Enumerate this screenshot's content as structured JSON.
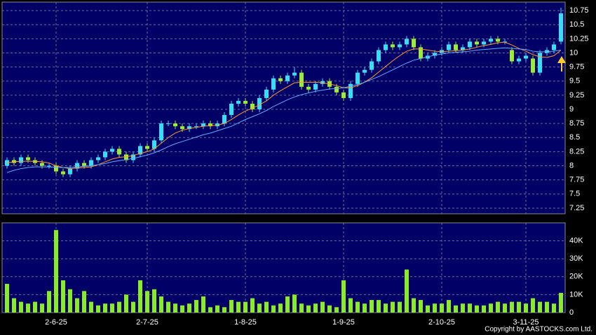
{
  "chart_data": [
    {
      "type": "candlestick",
      "up_color": "#33e0f5",
      "down_color": "#99ee33",
      "open": [
        8.0,
        8.1,
        8.05,
        8.15,
        8.1,
        8.05,
        8.0,
        8.0,
        7.9,
        7.85,
        7.95,
        8.05,
        8.0,
        8.1,
        8.15,
        8.25,
        8.3,
        8.2,
        8.1,
        8.2,
        8.35,
        8.3,
        8.45,
        8.75,
        8.75,
        8.7,
        8.65,
        8.7,
        8.7,
        8.75,
        8.7,
        8.75,
        8.9,
        9.1,
        9.15,
        9.1,
        9.0,
        9.2,
        9.35,
        9.55,
        9.5,
        9.6,
        9.65,
        9.4,
        9.35,
        9.45,
        9.5,
        9.4,
        9.3,
        9.2,
        9.45,
        9.65,
        9.7,
        9.85,
        10.05,
        10.15,
        10.1,
        10.15,
        10.25,
        10.1,
        9.9,
        9.95,
        10.0,
        10.05,
        10.15,
        10.05,
        10.1,
        10.2,
        10.15,
        10.2,
        10.25,
        10.2,
        10.05,
        9.85,
        9.9,
        9.9,
        9.65,
        10.0,
        10.05,
        10.2
      ],
      "high": [
        8.15,
        8.15,
        8.2,
        8.2,
        8.15,
        8.1,
        8.05,
        8.05,
        7.95,
        8.0,
        8.1,
        8.1,
        8.15,
        8.2,
        8.3,
        8.35,
        8.35,
        8.25,
        8.25,
        8.4,
        8.4,
        8.5,
        8.8,
        8.8,
        8.8,
        8.75,
        8.75,
        8.75,
        8.8,
        8.8,
        8.8,
        8.95,
        9.15,
        9.2,
        9.2,
        9.15,
        9.25,
        9.4,
        9.6,
        9.6,
        9.65,
        9.75,
        9.7,
        9.45,
        9.5,
        9.55,
        9.55,
        9.45,
        9.35,
        9.5,
        9.7,
        9.75,
        9.9,
        10.1,
        10.2,
        10.2,
        10.2,
        10.3,
        10.3,
        10.15,
        10.0,
        10.05,
        10.1,
        10.2,
        10.2,
        10.15,
        10.25,
        10.25,
        10.25,
        10.3,
        10.3,
        10.25,
        10.1,
        9.95,
        10.0,
        9.95,
        10.05,
        10.1,
        10.2,
        10.8
      ],
      "low": [
        7.95,
        8.0,
        8.0,
        8.05,
        8.0,
        7.95,
        7.95,
        7.85,
        7.8,
        7.8,
        7.9,
        7.95,
        7.95,
        8.05,
        8.1,
        8.2,
        8.15,
        8.05,
        8.05,
        8.15,
        8.25,
        8.25,
        8.4,
        8.7,
        8.65,
        8.6,
        8.6,
        8.65,
        8.65,
        8.65,
        8.65,
        8.7,
        8.85,
        9.05,
        9.05,
        8.95,
        8.95,
        9.15,
        9.3,
        9.45,
        9.45,
        9.55,
        9.35,
        9.3,
        9.3,
        9.4,
        9.35,
        9.25,
        9.15,
        9.15,
        9.4,
        9.6,
        9.65,
        9.8,
        10.0,
        10.05,
        10.05,
        10.1,
        10.05,
        9.85,
        9.85,
        9.9,
        9.95,
        10.0,
        10.0,
        10.0,
        10.05,
        10.1,
        10.1,
        10.15,
        10.15,
        10.15,
        9.8,
        9.8,
        9.85,
        9.6,
        9.6,
        9.95,
        10.0,
        10.15
      ],
      "close": [
        8.1,
        8.05,
        8.15,
        8.1,
        8.05,
        8.0,
        8.0,
        7.9,
        7.85,
        7.95,
        8.05,
        8.0,
        8.1,
        8.15,
        8.25,
        8.3,
        8.2,
        8.1,
        8.2,
        8.35,
        8.3,
        8.45,
        8.75,
        8.75,
        8.7,
        8.65,
        8.7,
        8.7,
        8.75,
        8.7,
        8.75,
        8.9,
        9.1,
        9.15,
        9.1,
        9.0,
        9.2,
        9.35,
        9.55,
        9.5,
        9.6,
        9.65,
        9.4,
        9.35,
        9.45,
        9.5,
        9.4,
        9.3,
        9.2,
        9.45,
        9.65,
        9.7,
        9.85,
        10.05,
        10.15,
        10.1,
        10.15,
        10.25,
        10.1,
        9.9,
        9.95,
        10.0,
        10.05,
        10.15,
        10.05,
        10.1,
        10.2,
        10.15,
        10.2,
        10.25,
        10.2,
        10.2,
        9.85,
        9.9,
        9.95,
        9.65,
        10.0,
        10.05,
        10.15,
        10.7
      ],
      "series": [
        {
          "color": "#ff9933",
          "values": [
            8.05,
            8.07,
            8.08,
            8.08,
            8.08,
            8.07,
            8.05,
            8.0,
            7.97,
            7.95,
            7.96,
            7.97,
            7.98,
            8.02,
            8.07,
            8.12,
            8.15,
            8.16,
            8.18,
            8.22,
            8.25,
            8.3,
            8.4,
            8.5,
            8.58,
            8.63,
            8.66,
            8.68,
            8.7,
            8.71,
            8.72,
            8.75,
            8.82,
            8.9,
            8.97,
            9.02,
            9.08,
            9.15,
            9.25,
            9.33,
            9.4,
            9.47,
            9.48,
            9.48,
            9.48,
            9.47,
            9.45,
            9.42,
            9.38,
            9.38,
            9.42,
            9.48,
            9.56,
            9.66,
            9.76,
            9.86,
            9.95,
            10.03,
            10.07,
            10.07,
            10.05,
            10.03,
            10.02,
            10.03,
            10.04,
            10.05,
            10.07,
            10.1,
            10.13,
            10.15,
            10.18,
            10.19,
            10.14,
            10.08,
            10.03,
            9.97,
            9.93,
            9.92,
            9.95,
            10.05
          ]
        },
        {
          "color": "#66aaff",
          "values": [
            7.88,
            7.92,
            7.95,
            7.97,
            7.98,
            7.98,
            7.98,
            7.97,
            7.97,
            7.97,
            7.98,
            7.99,
            8.0,
            8.02,
            8.04,
            8.07,
            8.09,
            8.11,
            8.13,
            8.16,
            8.19,
            8.23,
            8.28,
            8.34,
            8.39,
            8.43,
            8.47,
            8.51,
            8.55,
            8.58,
            8.62,
            8.66,
            8.7,
            8.76,
            8.82,
            8.87,
            8.92,
            8.98,
            9.05,
            9.11,
            9.17,
            9.22,
            9.26,
            9.29,
            9.32,
            9.34,
            9.36,
            9.37,
            9.38,
            9.41,
            9.44,
            9.48,
            9.53,
            9.58,
            9.64,
            9.7,
            9.76,
            9.82,
            9.87,
            9.9,
            9.93,
            9.96,
            9.98,
            10.0,
            10.01,
            10.02,
            10.03,
            10.05,
            10.06,
            10.07,
            10.08,
            10.09,
            10.08,
            10.07,
            10.06,
            10.03,
            10.02,
            10.02,
            10.03,
            10.05
          ]
        }
      ],
      "ylim": [
        7.15,
        10.9
      ],
      "yticks": [
        7.25,
        7.5,
        7.75,
        8,
        8.25,
        8.5,
        8.75,
        9,
        9.25,
        9.5,
        9.75,
        10,
        10.25,
        10.5,
        10.75
      ],
      "grid": true
    },
    {
      "type": "bar",
      "color": "#88ee22",
      "categories": [
        null,
        null,
        null,
        null,
        null,
        null,
        null,
        "2-6-25",
        null,
        null,
        null,
        null,
        null,
        null,
        null,
        null,
        null,
        null,
        null,
        null,
        "2-7-25",
        null,
        null,
        null,
        null,
        null,
        null,
        null,
        null,
        null,
        null,
        null,
        null,
        null,
        "1-8-25",
        null,
        null,
        null,
        null,
        null,
        null,
        null,
        null,
        null,
        null,
        null,
        null,
        null,
        "1-9-25",
        null,
        null,
        null,
        null,
        null,
        null,
        null,
        null,
        null,
        null,
        null,
        null,
        null,
        "2-10-25",
        null,
        null,
        null,
        null,
        null,
        null,
        null,
        null,
        null,
        null,
        null,
        "3-11-25",
        null,
        null,
        null,
        null,
        null
      ],
      "values": [
        16000,
        8000,
        6000,
        5000,
        6000,
        5000,
        12000,
        46000,
        18000,
        13000,
        8000,
        12000,
        6000,
        4000,
        5000,
        5000,
        6000,
        10000,
        6000,
        18000,
        12000,
        13000,
        9000,
        6000,
        5000,
        4000,
        5000,
        7000,
        9000,
        3000,
        4000,
        3000,
        7000,
        6000,
        6000,
        8000,
        5000,
        6000,
        4000,
        5000,
        9000,
        10000,
        5000,
        4000,
        5000,
        6000,
        4000,
        3000,
        18000,
        8000,
        6000,
        5000,
        7000,
        7000,
        5000,
        6000,
        6000,
        24000,
        8000,
        7000,
        4000,
        5000,
        5000,
        7000,
        4000,
        5000,
        5000,
        4000,
        4000,
        5000,
        6000,
        5000,
        6000,
        6000,
        5000,
        8000,
        6000,
        6000,
        5000,
        11000
      ],
      "ylim": [
        0,
        50000
      ],
      "yticks": [
        0,
        {
          "value": 10000,
          "label": "10K"
        },
        {
          "value": 20000,
          "label": "20K"
        },
        {
          "value": 30000,
          "label": "30K"
        },
        {
          "value": 40000,
          "label": "40K"
        }
      ],
      "grid": true
    }
  ],
  "footer": "Copyright by AASTOCKS.com Ltd."
}
